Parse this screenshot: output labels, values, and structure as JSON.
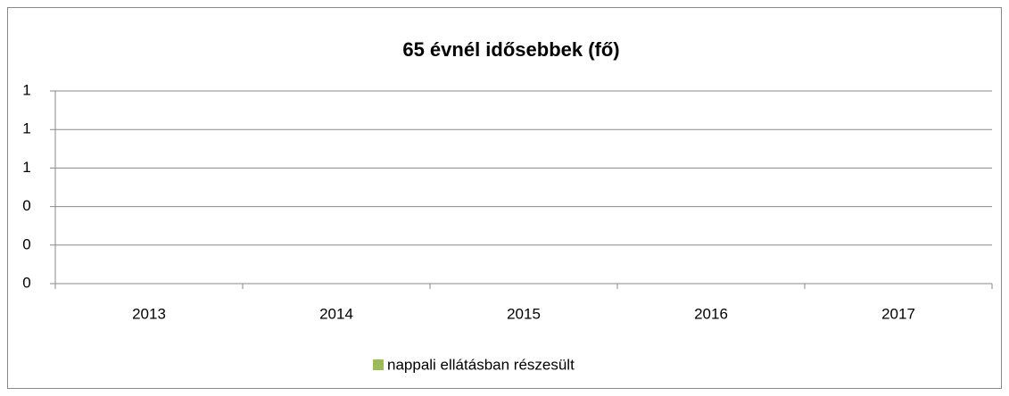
{
  "chart_data": {
    "type": "bar",
    "title": "65 évnél idősebbek (fő)",
    "categories": [
      "2013",
      "2014",
      "2015",
      "2016",
      "2017"
    ],
    "series": [
      {
        "name": "nappali ellátásban részesült",
        "color": "#9bbb59",
        "values": [
          0,
          0,
          0,
          0,
          0
        ]
      }
    ],
    "ylim": [
      0,
      1
    ],
    "yticks": [
      0,
      {
        "value": 0.2,
        "label": "0"
      },
      {
        "value": 0.4,
        "label": "0"
      },
      {
        "value": 0.6,
        "label": "1"
      },
      {
        "value": 0.8,
        "label": "1"
      },
      1
    ],
    "grid": true,
    "legend": "bottom"
  }
}
